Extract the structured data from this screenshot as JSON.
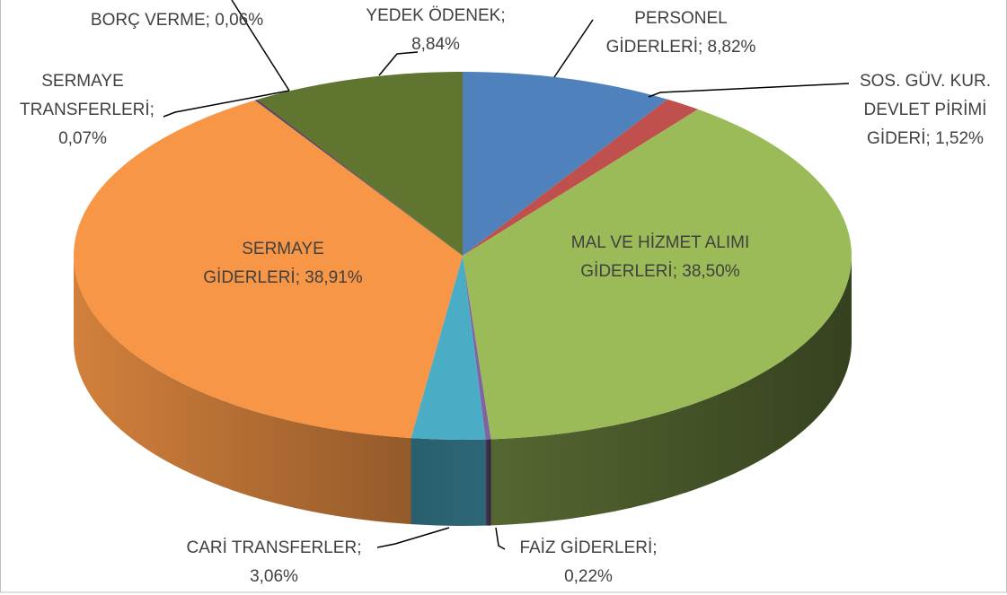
{
  "chart_data": {
    "type": "pie3d",
    "categories": [
      "PERSONEL GİDERLERİ",
      "SOS. GÜV. KUR. DEVLET PİRİMİ GİDERİ",
      "MAL VE HİZMET ALIMI GİDERLERİ",
      "FAİZ GİDERLERİ",
      "CARİ TRANSFERLER",
      "SERMAYE GİDERLERİ",
      "SERMAYE TRANSFERLERİ",
      "BORÇ VERME",
      "YEDEK ÖDENEK"
    ],
    "values": [
      8.82,
      1.52,
      38.5,
      0.22,
      3.06,
      38.91,
      0.07,
      0.06,
      8.84
    ],
    "value_labels": [
      "8,82%",
      "1,52%",
      "38,50%",
      "0,22%",
      "3,06%",
      "38,91%",
      "0,07%",
      "0,06%",
      "8,84%"
    ],
    "label_separator": ";",
    "colors": [
      "#4f81bd",
      "#c0504d",
      "#9bbb59",
      "#8064a2",
      "#4bacc6",
      "#f79646",
      "#2c4d75",
      "#772c2a",
      "#5f7530"
    ]
  }
}
